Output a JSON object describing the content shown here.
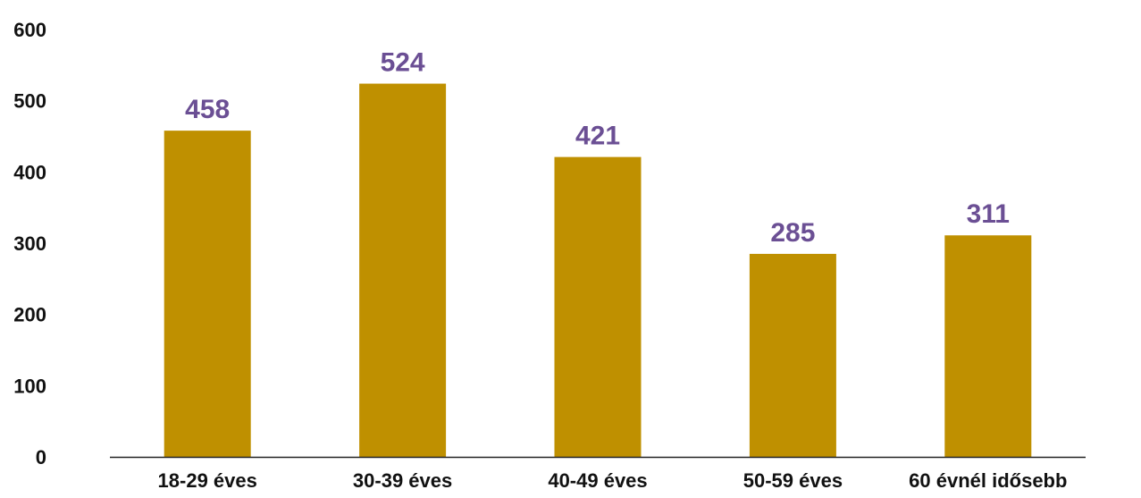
{
  "chart_data": {
    "type": "bar",
    "categories": [
      "18-29 éves",
      "30-39 éves",
      "40-49 éves",
      "50-59 éves",
      "60 évnél idősebb"
    ],
    "values": [
      458,
      524,
      421,
      285,
      311
    ],
    "data_labels": [
      "458",
      "524",
      "421",
      "285",
      "311"
    ],
    "yticks": [
      "0",
      "100",
      "200",
      "300",
      "400",
      "500",
      "600"
    ],
    "ylim": [
      0,
      600
    ],
    "grid": false,
    "legend": "none",
    "colors": {
      "bar": "#BF9000",
      "data_label": "#6B4F94",
      "axis": "#222222"
    }
  }
}
